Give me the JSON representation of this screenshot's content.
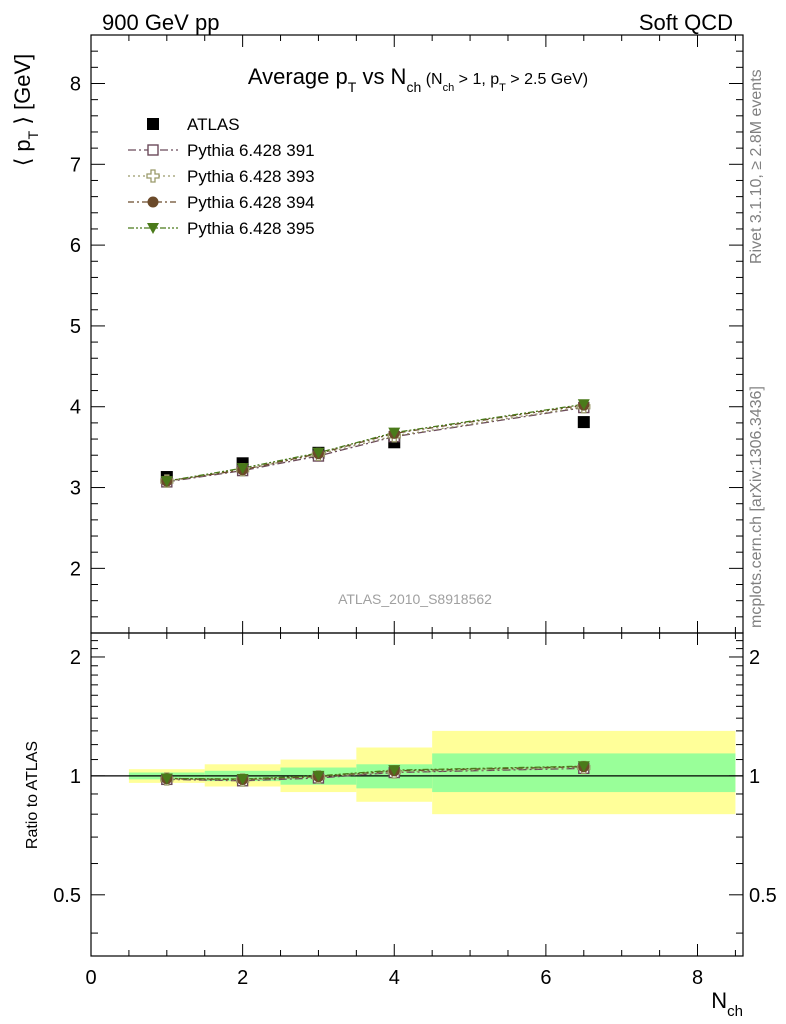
{
  "header": {
    "left": "900 GeV pp",
    "right": "Soft QCD"
  },
  "side_labels": {
    "rivet": "Rivet 3.1.10, ≥ 2.8M events",
    "mcplots": "mcplots.cern.ch [arXiv:1306.3436]"
  },
  "analysis_id": "ATLAS_2010_S8918562",
  "colors": {
    "atlas": "#000000",
    "pythia391": "#6b4a5a",
    "pythia393": "#9a9a6a",
    "pythia394": "#6b4a2a",
    "pythia395": "#4a7a1a",
    "band_inner": "#99ff99",
    "band_outer": "#ffff99"
  },
  "chart_data": [
    {
      "type": "scatter",
      "title": {
        "main": "Average p",
        "main_sub": "T",
        "vs": " vs N",
        "vs_sub": "ch",
        "cut_open": " (N",
        "cut_sub1": "ch",
        "cut_mid": " > 1, p",
        "cut_sub2": "T",
        "cut_close": " > 2.5 GeV)"
      },
      "ylabel": {
        "open": "⟨ p",
        "sub": "T",
        "close": " ⟩  [GeV]"
      },
      "xlim": [
        0,
        8.6
      ],
      "ylim": [
        1.2,
        8.6
      ],
      "x_ticks": [
        0,
        2,
        4,
        6,
        8
      ],
      "y_ticks": [
        2,
        3,
        4,
        5,
        6,
        7,
        8
      ],
      "legend_position": "top-left",
      "series": [
        {
          "name": "ATLAS",
          "marker": "filled-square",
          "x": [
            1,
            2,
            3,
            4,
            6.5
          ],
          "y": [
            3.13,
            3.3,
            3.43,
            3.56,
            3.81
          ]
        },
        {
          "name": "Pythia 6.428 391",
          "marker": "open-square",
          "line": "dash-dot",
          "x": [
            1,
            2,
            3,
            4,
            6.5
          ],
          "y": [
            3.07,
            3.21,
            3.39,
            3.63,
            3.99
          ]
        },
        {
          "name": "Pythia 6.428 393",
          "marker": "open-cross",
          "line": "dot",
          "x": [
            1,
            2,
            3,
            4,
            6.5
          ],
          "y": [
            3.08,
            3.22,
            3.41,
            3.64,
            4.0
          ]
        },
        {
          "name": "Pythia 6.428 394",
          "marker": "filled-circle",
          "line": "dash-dot",
          "x": [
            1,
            2,
            3,
            4,
            6.5
          ],
          "y": [
            3.08,
            3.22,
            3.42,
            3.67,
            4.02
          ]
        },
        {
          "name": "Pythia 6.428 395",
          "marker": "filled-triangle",
          "line": "dash-dot-dot",
          "x": [
            1,
            2,
            3,
            4,
            6.5
          ],
          "y": [
            3.08,
            3.24,
            3.43,
            3.68,
            4.03
          ]
        }
      ]
    },
    {
      "type": "scatter",
      "ylabel": "Ratio to ATLAS",
      "xlabel": {
        "main": "N",
        "sub": "ch"
      },
      "xlim": [
        0,
        8.6
      ],
      "ylim": [
        0.35,
        2.3
      ],
      "log_y": true,
      "y_ticks": [
        0.5,
        1,
        2
      ],
      "y_tick_labels": [
        "0.5",
        "1",
        "2"
      ],
      "x_ticks": [
        0,
        2,
        4,
        6,
        8
      ],
      "bins": [
        {
          "x_low": 0.5,
          "x_high": 1.5,
          "inner": [
            0.98,
            1.02
          ],
          "outer": [
            0.96,
            1.04
          ]
        },
        {
          "x_low": 1.5,
          "x_high": 2.5,
          "inner": [
            0.97,
            1.03
          ],
          "outer": [
            0.94,
            1.07
          ]
        },
        {
          "x_low": 2.5,
          "x_high": 3.5,
          "inner": [
            0.95,
            1.05
          ],
          "outer": [
            0.91,
            1.1
          ]
        },
        {
          "x_low": 3.5,
          "x_high": 4.5,
          "inner": [
            0.93,
            1.07
          ],
          "outer": [
            0.86,
            1.18
          ]
        },
        {
          "x_low": 4.5,
          "x_high": 8.5,
          "inner": [
            0.91,
            1.14
          ],
          "outer": [
            0.8,
            1.3
          ]
        }
      ],
      "series": [
        {
          "name": "Pythia 6.428 391",
          "x": [
            1,
            2,
            3,
            4,
            6.5
          ],
          "y": [
            0.98,
            0.972,
            0.988,
            1.02,
            1.045
          ]
        },
        {
          "name": "Pythia 6.428 393",
          "x": [
            1,
            2,
            3,
            4,
            6.5
          ],
          "y": [
            0.982,
            0.976,
            0.994,
            1.023,
            1.05
          ]
        },
        {
          "name": "Pythia 6.428 394",
          "x": [
            1,
            2,
            3,
            4,
            6.5
          ],
          "y": [
            0.984,
            0.979,
            0.996,
            1.03,
            1.055
          ]
        },
        {
          "name": "Pythia 6.428 395",
          "x": [
            1,
            2,
            3,
            4,
            6.5
          ],
          "y": [
            0.985,
            0.982,
            1.0,
            1.034,
            1.058
          ]
        }
      ]
    }
  ]
}
